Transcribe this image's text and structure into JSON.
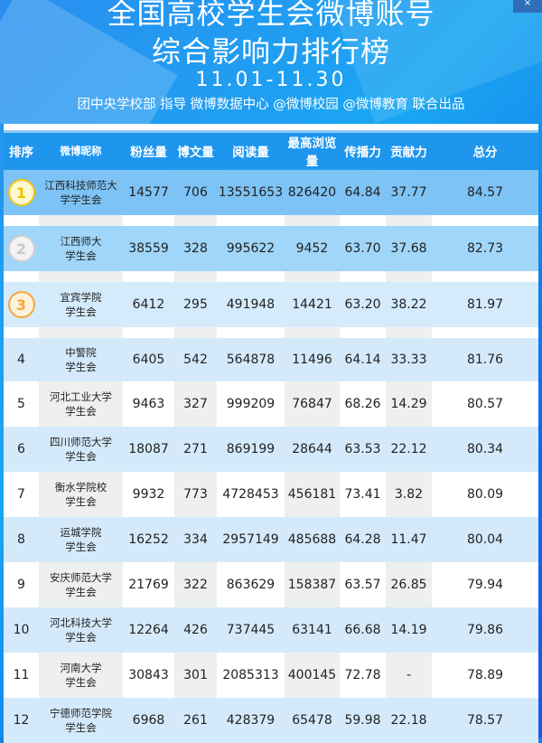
{
  "banner": {
    "title_line1": "全国高校学生会微博账号",
    "title_line2": "综合影响力排行榜",
    "date_range": "11.01-11.30",
    "subtitle": "团中央学校部 指导  微博数据中心 @微博校园 @微博教育 联合出品"
  },
  "colors": {
    "header": "#1e96ee",
    "row1": "#7ec3f5",
    "row2": "#a0d6f9",
    "row3": "#d4ebfb",
    "even": "#d4eafb",
    "odd": "#ffffff",
    "odd_cell": "#eef0f0",
    "gold": "#f5c518",
    "silver": "#cfcfcf",
    "bronze": "#f3a83a"
  },
  "columns": [
    "排序",
    "微博昵称",
    "粉丝量",
    "博文量",
    "阅读量",
    "最高浏览量",
    "传播力",
    "贡献力",
    "总分"
  ],
  "rows": [
    {
      "rank": "1",
      "medal": "gold-medal-icon",
      "name": [
        "江西科技师范大",
        "学学生会"
      ],
      "fans": "14577",
      "posts": "706",
      "reads": "13551653",
      "max_views": "826420",
      "spread": "64.84",
      "contrib": "37.77",
      "total": "84.57"
    },
    {
      "rank": "2",
      "medal": "silver-medal-icon",
      "name": [
        "江西师大",
        "学生会"
      ],
      "fans": "38559",
      "posts": "328",
      "reads": "995622",
      "max_views": "9452",
      "spread": "63.70",
      "contrib": "37.68",
      "total": "82.73"
    },
    {
      "rank": "3",
      "medal": "bronze-medal-icon",
      "name": [
        "宜宾学院",
        "学生会"
      ],
      "fans": "6412",
      "posts": "295",
      "reads": "491948",
      "max_views": "14421",
      "spread": "63.20",
      "contrib": "38.22",
      "total": "81.97"
    },
    {
      "rank": "4",
      "name": [
        "中警院",
        "学生会"
      ],
      "fans": "6405",
      "posts": "542",
      "reads": "564878",
      "max_views": "11496",
      "spread": "64.14",
      "contrib": "33.33",
      "total": "81.76"
    },
    {
      "rank": "5",
      "name": [
        "河北工业大学",
        "学生会"
      ],
      "fans": "9463",
      "posts": "327",
      "reads": "999209",
      "max_views": "76847",
      "spread": "68.26",
      "contrib": "14.29",
      "total": "80.57"
    },
    {
      "rank": "6",
      "name": [
        "四川师范大学",
        "学生会"
      ],
      "fans": "18087",
      "posts": "271",
      "reads": "869199",
      "max_views": "28644",
      "spread": "63.53",
      "contrib": "22.12",
      "total": "80.34"
    },
    {
      "rank": "7",
      "name": [
        "衡水学院校",
        "学生会"
      ],
      "fans": "9932",
      "posts": "773",
      "reads": "4728453",
      "max_views": "456181",
      "spread": "73.41",
      "contrib": "3.82",
      "total": "80.09"
    },
    {
      "rank": "8",
      "name": [
        "运城学院",
        "学生会"
      ],
      "fans": "16252",
      "posts": "334",
      "reads": "2957149",
      "max_views": "485688",
      "spread": "64.28",
      "contrib": "11.47",
      "total": "80.04"
    },
    {
      "rank": "9",
      "name": [
        "安庆师范大学",
        "学生会"
      ],
      "fans": "21769",
      "posts": "322",
      "reads": "863629",
      "max_views": "158387",
      "spread": "63.57",
      "contrib": "26.85",
      "total": "79.94"
    },
    {
      "rank": "10",
      "name": [
        "河北科技大学",
        "学生会"
      ],
      "fans": "12264",
      "posts": "426",
      "reads": "737445",
      "max_views": "63141",
      "spread": "66.68",
      "contrib": "14.19",
      "total": "79.86"
    },
    {
      "rank": "11",
      "name": [
        "河南大学",
        "学生会"
      ],
      "fans": "30843",
      "posts": "301",
      "reads": "2085313",
      "max_views": "400145",
      "spread": "72.78",
      "contrib": "-",
      "total": "78.89"
    },
    {
      "rank": "12",
      "name": [
        "宁德师范学院",
        "学生会"
      ],
      "fans": "6968",
      "posts": "261",
      "reads": "428379",
      "max_views": "65478",
      "spread": "59.98",
      "contrib": "22.18",
      "total": "78.57"
    }
  ]
}
